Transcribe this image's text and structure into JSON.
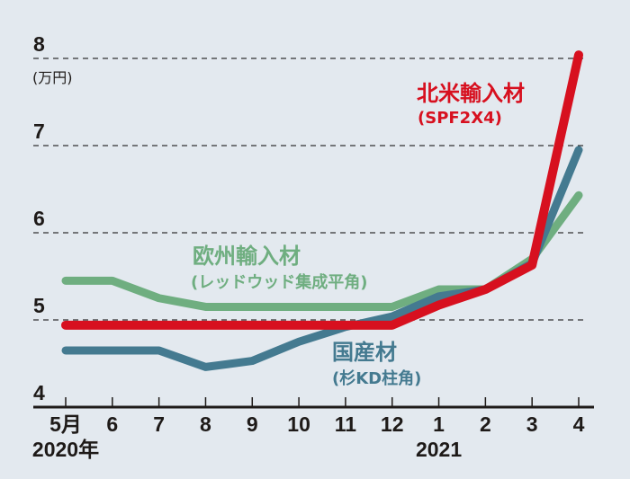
{
  "chart_data": {
    "type": "line",
    "title": "",
    "ylabel": "(万円)",
    "xlabel": "",
    "ylim": [
      4,
      8
    ],
    "yticks": [
      "4",
      "5",
      "6",
      "7",
      "8"
    ],
    "grid": "horizontal dashed at 5, 6, 7, 8",
    "categories": [
      "5月",
      "6",
      "7",
      "8",
      "9",
      "10",
      "11",
      "12",
      "1",
      "2",
      "3",
      "4"
    ],
    "year_labels": [
      {
        "index": 0,
        "text": "2020年"
      },
      {
        "index": 8,
        "text": "2021"
      }
    ],
    "series": [
      {
        "name": "欧州輸入材",
        "note": "(レッドウッド集成平角)",
        "color": "#6fae80",
        "values": [
          5.45,
          5.45,
          5.25,
          5.15,
          5.15,
          5.15,
          5.15,
          5.15,
          5.35,
          5.35,
          5.7,
          6.43
        ]
      },
      {
        "name": "国産材",
        "note": "(杉KD柱角)",
        "color": "#447a90",
        "values": [
          4.65,
          4.65,
          4.65,
          4.46,
          4.53,
          4.75,
          4.92,
          5.04,
          5.27,
          5.35,
          5.65,
          6.95
        ]
      },
      {
        "name": "北米輸入材",
        "note": "(SPF2X4)",
        "color": "#d7101f",
        "values": [
          4.94,
          4.94,
          4.94,
          4.94,
          4.94,
          4.94,
          4.94,
          4.94,
          5.17,
          5.35,
          5.63,
          8.04
        ]
      }
    ]
  }
}
